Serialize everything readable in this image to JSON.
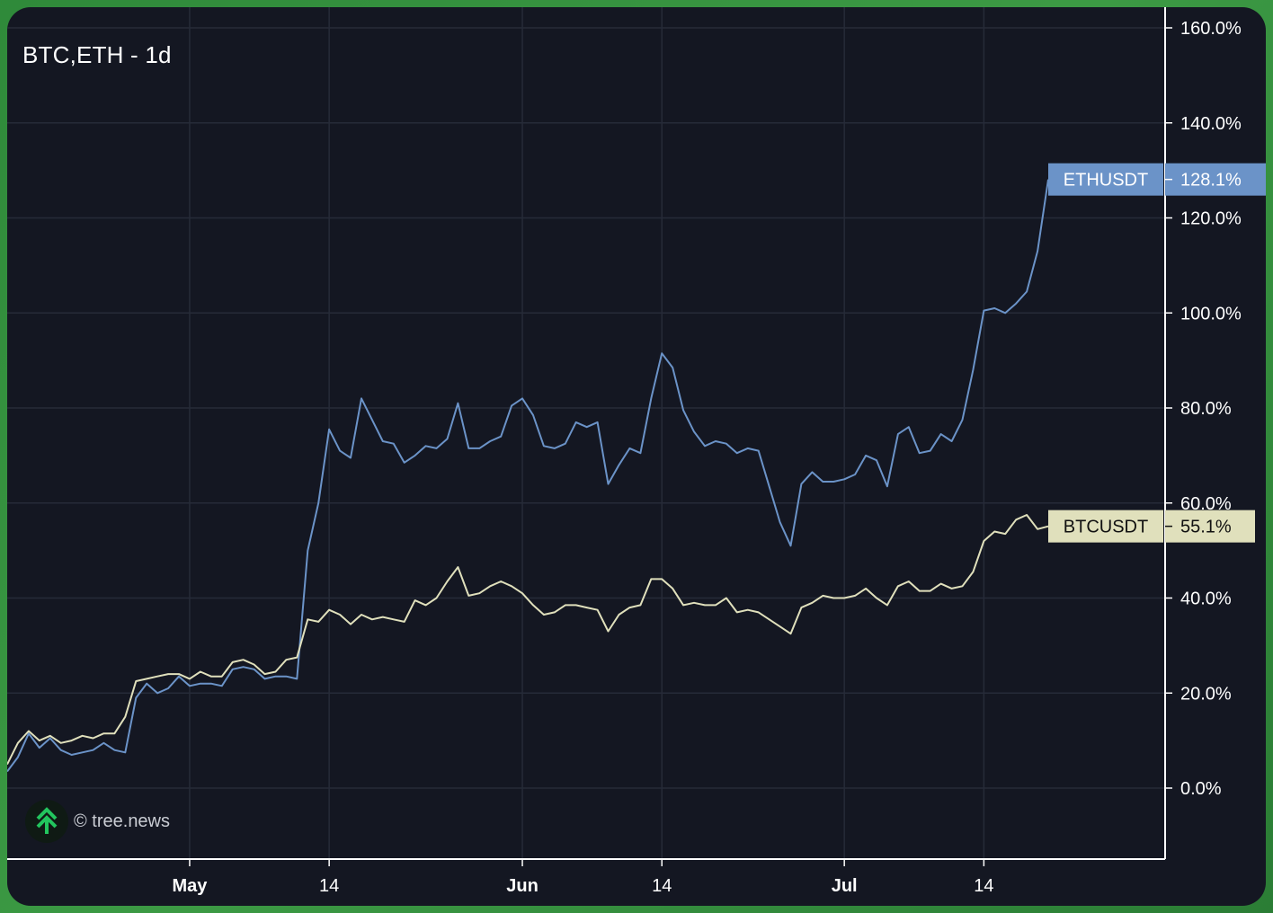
{
  "chart_title": "BTC,ETH - 1d",
  "watermark": "© tree.news",
  "colors": {
    "background": "#141722",
    "frame": "#3a9a44",
    "grid": "#262b38",
    "axis": "#ffffff",
    "eth": "#6b93c8",
    "btc": "#e0e0bc"
  },
  "chart_data": {
    "type": "line",
    "title": "BTC,ETH - 1d",
    "x_tick_labels": [
      {
        "label": "May",
        "bold": true,
        "day": 17
      },
      {
        "label": "14",
        "bold": false,
        "day": 30
      },
      {
        "label": "Jun",
        "bold": true,
        "day": 48
      },
      {
        "label": "14",
        "bold": false,
        "day": 61
      },
      {
        "label": "Jul",
        "bold": true,
        "day": 78
      },
      {
        "label": "14",
        "bold": false,
        "day": 91
      }
    ],
    "y_ticks": [
      0,
      20,
      40,
      60,
      80,
      100,
      120,
      140,
      160
    ],
    "y_tick_labels": [
      "0.0%",
      "20.0%",
      "40.0%",
      "60.0%",
      "80.0%",
      "100.0%",
      "120.0%",
      "140.0%",
      "160.0%"
    ],
    "ylim": [
      -15,
      164
    ],
    "grid": true,
    "series": [
      {
        "name": "ETHUSDT",
        "last_label": "128.1%",
        "values": [
          3.5,
          6.5,
          11.5,
          8.5,
          10.5,
          8,
          7,
          7.5,
          8,
          9.5,
          8,
          7.5,
          19,
          22,
          20,
          21,
          23.5,
          21.5,
          22,
          22,
          21.5,
          25,
          25.5,
          25,
          23,
          23.5,
          23.5,
          23,
          50,
          60,
          75.5,
          71,
          69.5,
          82,
          77.5,
          73,
          72.5,
          68.5,
          70,
          72,
          71.5,
          73.5,
          81,
          71.5,
          71.5,
          73,
          74,
          80.5,
          82,
          78.5,
          72,
          71.5,
          72.5,
          77,
          76,
          77,
          64,
          68,
          71.5,
          70.5,
          82,
          91.5,
          88.5,
          79.5,
          75,
          72,
          73,
          72.5,
          70.5,
          71.5,
          71,
          63.5,
          56,
          51,
          64,
          66.5,
          64.5,
          64.5,
          65,
          66,
          70,
          69,
          63.5,
          74.5,
          76,
          70.5,
          71,
          74.5,
          73,
          77.5,
          88,
          100.5,
          101,
          100,
          102,
          104.5,
          113,
          128.1
        ]
      },
      {
        "name": "BTCUSDT",
        "last_label": "55.1%",
        "values": [
          5,
          9.5,
          12,
          10,
          11,
          9.5,
          10,
          11,
          10.5,
          11.5,
          11.5,
          15,
          22.5,
          23,
          23.5,
          24,
          24,
          23,
          24.5,
          23.5,
          23.5,
          26.5,
          27,
          26,
          24,
          24.5,
          27,
          27.5,
          35.5,
          35,
          37.5,
          36.5,
          34.5,
          36.5,
          35.5,
          36,
          35.5,
          35,
          39.5,
          38.5,
          40,
          43.5,
          46.5,
          40.5,
          41,
          42.5,
          43.5,
          42.5,
          41,
          38.5,
          36.5,
          37,
          38.5,
          38.5,
          38,
          37.5,
          33,
          36.5,
          38,
          38.5,
          44,
          44,
          42,
          38.5,
          39,
          38.5,
          38.5,
          40,
          37,
          37.5,
          37,
          35.5,
          34,
          32.5,
          38,
          39,
          40.5,
          40,
          40,
          40.5,
          42,
          40,
          38.5,
          42.5,
          43.5,
          41.5,
          41.5,
          43,
          42,
          42.5,
          45.5,
          52,
          54,
          53.5,
          56.5,
          57.5,
          54.5,
          55.1
        ]
      }
    ]
  }
}
